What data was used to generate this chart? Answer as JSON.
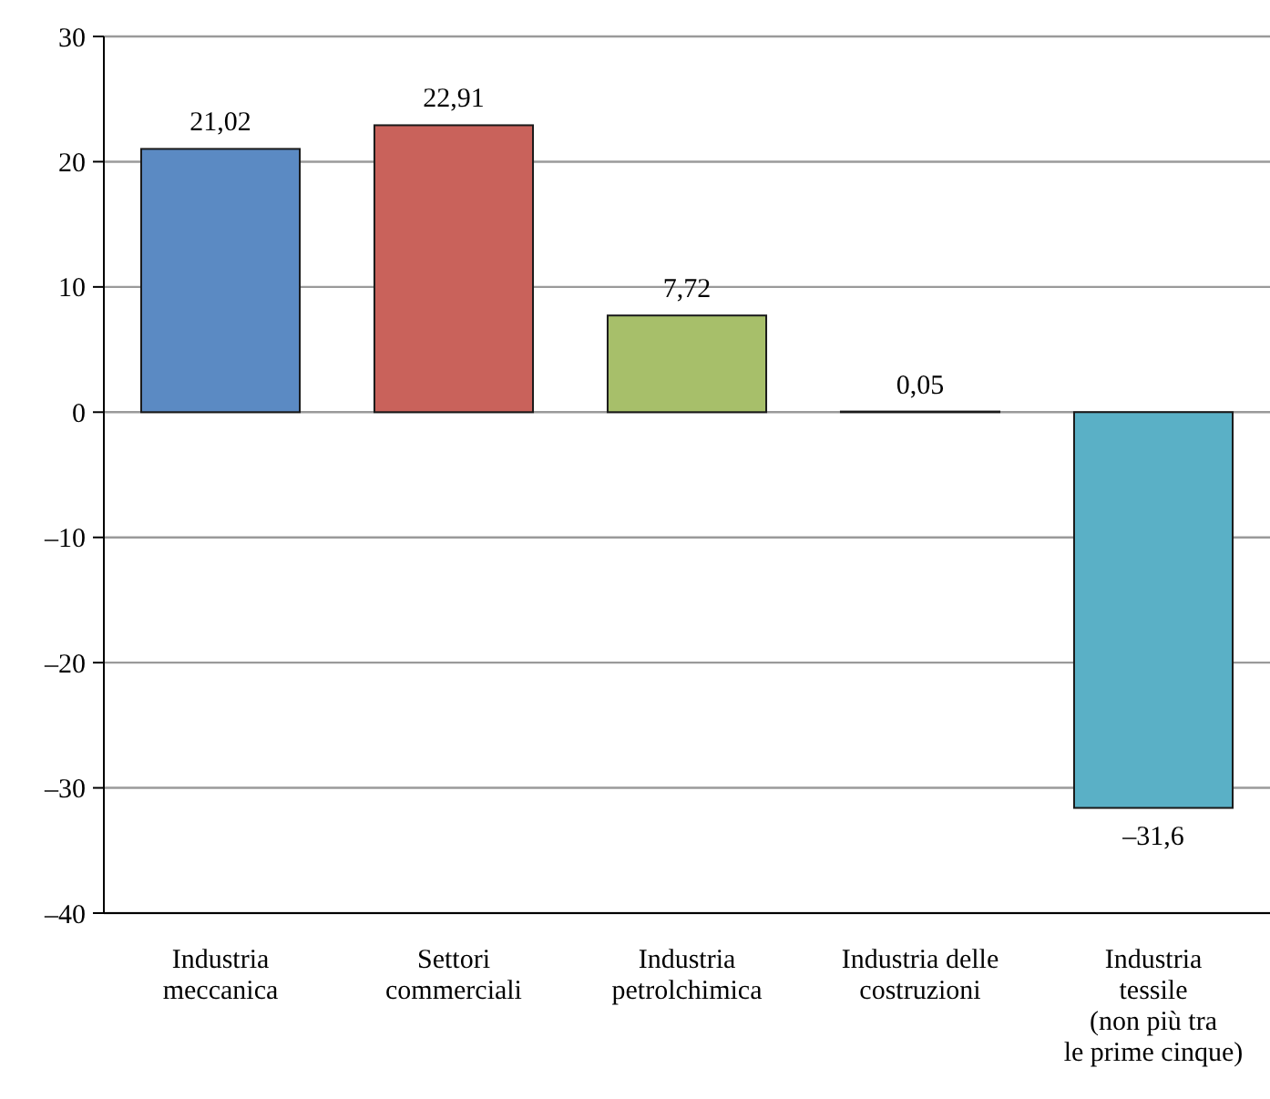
{
  "chart_data": {
    "type": "bar",
    "categories": [
      "Industria\nmeccanica",
      "Settori\ncommerciali",
      "Industria\npetrolchimica",
      "Industria delle\ncostruzioni",
      "Industria\ntessile\n(non più tra\nle prime cinque)"
    ],
    "values": [
      21.02,
      22.91,
      7.72,
      0.05,
      -31.6
    ],
    "value_labels": [
      "21,02",
      "22,91",
      "7,72",
      "0,05",
      "–31,6"
    ],
    "colors": [
      "#5b8ac3",
      "#c9625b",
      "#a7bf6a",
      "#9bbb59",
      "#5ab0c6"
    ],
    "ylim": [
      -40,
      30
    ],
    "yticks": [
      {
        "value": -40,
        "label": "–40"
      },
      {
        "value": -30,
        "label": "–30"
      },
      {
        "value": -20,
        "label": "–20"
      },
      {
        "value": -10,
        "label": "–10"
      },
      0,
      10,
      20,
      30
    ],
    "grid": "y"
  }
}
